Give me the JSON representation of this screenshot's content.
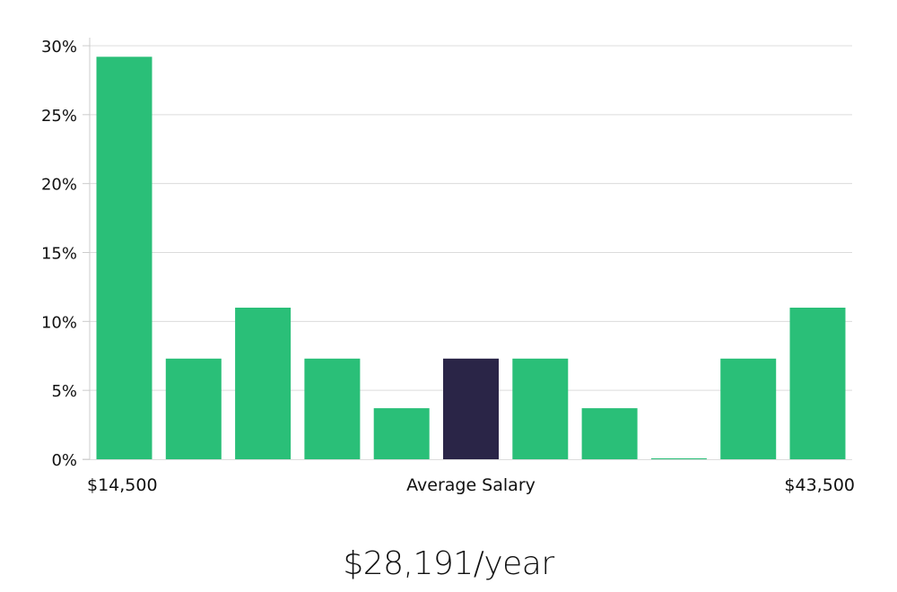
{
  "chart_data": {
    "type": "bar",
    "categories": [
      "1",
      "2",
      "3",
      "4",
      "5",
      "6",
      "7",
      "8",
      "9",
      "10",
      "11"
    ],
    "values": [
      29.2,
      7.3,
      11.0,
      7.3,
      3.7,
      7.3,
      7.3,
      3.7,
      0.0,
      7.3,
      11.0
    ],
    "highlight_index": 5,
    "colors": {
      "bar": "#2abf78",
      "highlight": "#2a2547",
      "grid": "#dcdcdc",
      "axis": "#cccccc"
    },
    "y_ticks": [
      "0%",
      "5%",
      "10%",
      "15%",
      "20%",
      "25%",
      "30%"
    ],
    "y_tick_values": [
      0,
      5,
      10,
      15,
      20,
      25,
      30
    ],
    "ylim": [
      0,
      30
    ],
    "grid": true,
    "x_min_label": "$14,500",
    "x_center_label": "Average Salary",
    "x_max_label": "$43,500"
  },
  "footer": {
    "salary_text": "$28,191/year"
  }
}
